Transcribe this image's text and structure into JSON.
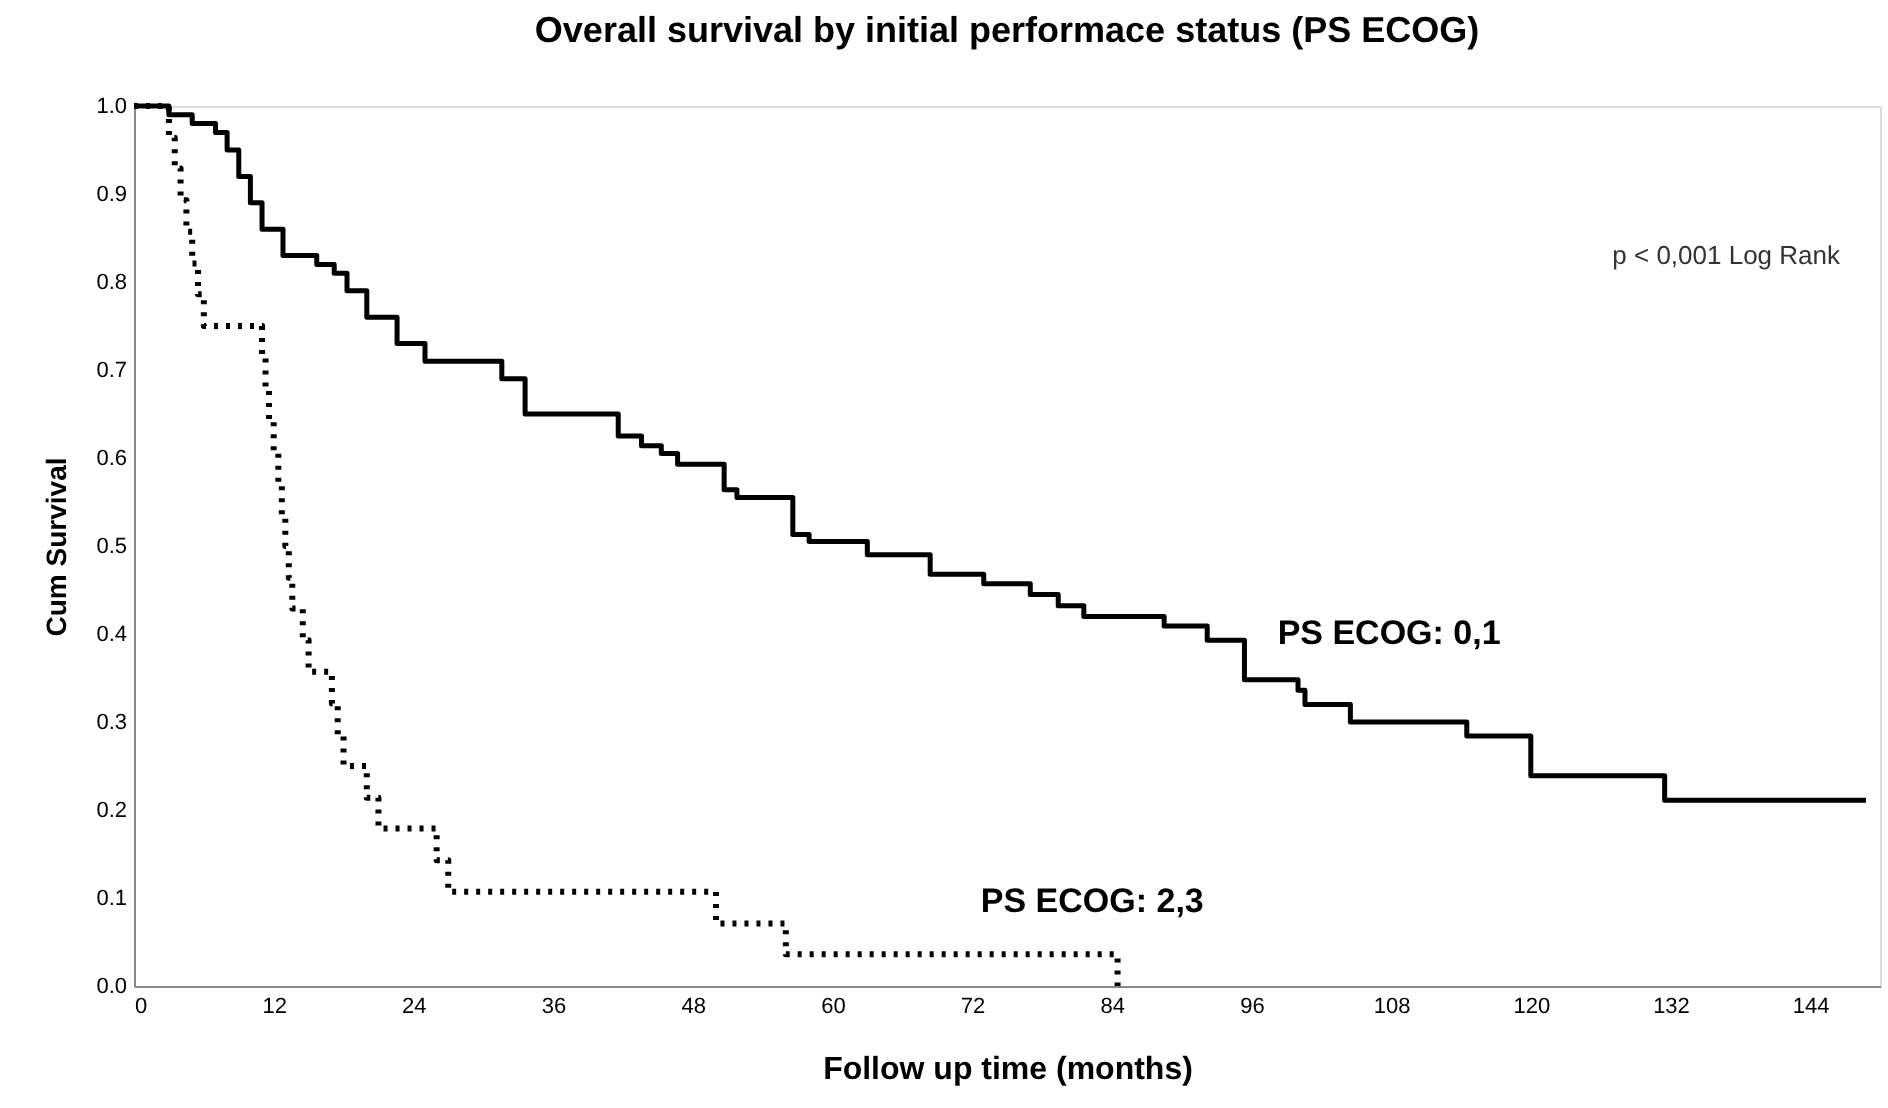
{
  "chart_data": {
    "type": "step",
    "title": "Overall survival by initial performace status (PS ECOG)",
    "xlabel": "Follow up time (months)",
    "ylabel": "Cum Survival",
    "annotations": [
      "p < 0,001 Log Rank"
    ],
    "xlim": [
      0,
      150
    ],
    "xticks": [
      0,
      12,
      24,
      36,
      48,
      60,
      72,
      84,
      96,
      108,
      120,
      132,
      144
    ],
    "ylim": [
      0,
      1
    ],
    "yticks": [
      {
        "value": 0,
        "label": "0.0"
      },
      0.1,
      0.2,
      0.3,
      0.4,
      0.5,
      0.6,
      0.7,
      0.8,
      0.9,
      {
        "value": 1,
        "label": "1.0"
      }
    ],
    "grid": false,
    "legend": false,
    "series": [
      {
        "name": "PS ECOG: 0,1",
        "color": "#000000",
        "line_style": "solid",
        "x": [
          0,
          3,
          5,
          7,
          8,
          9,
          10,
          11,
          12.8,
          15.7,
          17.2,
          18.3,
          20,
          22.6,
          25,
          31.6,
          33.6,
          41.6,
          43.6,
          45.3,
          46.7,
          50.7,
          51.8,
          56.6,
          58,
          63,
          68.4,
          73,
          77,
          79.4,
          81.6,
          88.5,
          92.2,
          95.4,
          100,
          100.6,
          104.5,
          114.5,
          120,
          131.5,
          148.8
        ],
        "values": [
          1.0,
          0.99,
          0.98,
          0.97,
          0.95,
          0.92,
          0.89,
          0.86,
          0.83,
          0.82,
          0.81,
          0.79,
          0.76,
          0.73,
          0.71,
          0.69,
          0.65,
          0.625,
          0.614,
          0.605,
          0.593,
          0.564,
          0.555,
          0.513,
          0.505,
          0.49,
          0.468,
          0.457,
          0.445,
          0.432,
          0.42,
          0.409,
          0.393,
          0.348,
          0.336,
          0.32,
          0.3,
          0.284,
          0.239,
          0.211,
          0.211
        ]
      },
      {
        "name": "PS ECOG: 2,3",
        "color": "#000000",
        "line_style": "dotted",
        "x": [
          0,
          3,
          3.5,
          4,
          4.5,
          5,
          5.5,
          6,
          11,
          11.3,
          11.6,
          12,
          12.4,
          12.7,
          13,
          13.3,
          13.6,
          14.5,
          15,
          17,
          17.5,
          18,
          20,
          21,
          26,
          27,
          50,
          56,
          84.5
        ],
        "values": [
          1.0,
          0.964,
          0.929,
          0.893,
          0.857,
          0.821,
          0.786,
          0.75,
          0.714,
          0.679,
          0.643,
          0.607,
          0.571,
          0.536,
          0.5,
          0.464,
          0.429,
          0.393,
          0.357,
          0.321,
          0.286,
          0.25,
          0.214,
          0.179,
          0.143,
          0.107,
          0.071,
          0.036,
          0.0
        ]
      }
    ]
  }
}
